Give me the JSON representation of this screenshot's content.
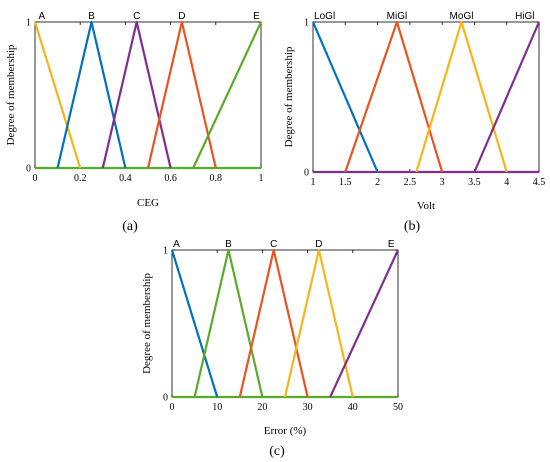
{
  "chart_data": [
    {
      "type": "line",
      "panel": "(a)",
      "xlabel": "CEG",
      "ylabel": "Degree of membership",
      "xlim": [
        0,
        1
      ],
      "ylim": [
        0,
        1
      ],
      "xticks": [
        0,
        0.2,
        0.4,
        0.6,
        0.8,
        1
      ],
      "xtick_labels": [
        "0",
        "0.2",
        "0.4",
        "0.6",
        "0.8",
        "1"
      ],
      "yticks": [
        0,
        1
      ],
      "ytick_labels": [
        "0",
        "1"
      ],
      "grid": false,
      "series": [
        {
          "name": "A",
          "color": "#f7b519",
          "x": [
            0,
            0.2
          ],
          "y": [
            1,
            0
          ],
          "label_x": 0.03
        },
        {
          "name": "B",
          "color": "#0072bd",
          "x": [
            0.1,
            0.25,
            0.4
          ],
          "y": [
            0,
            1,
            0
          ],
          "label_x": 0.25
        },
        {
          "name": "C",
          "color": "#7e2f8e",
          "x": [
            0.3,
            0.45,
            0.6
          ],
          "y": [
            0,
            1,
            0
          ],
          "label_x": 0.45
        },
        {
          "name": "D",
          "color": "#e9541f",
          "x": [
            0.5,
            0.65,
            0.8
          ],
          "y": [
            0,
            1,
            0
          ],
          "label_x": 0.65
        },
        {
          "name": "E",
          "color": "#5aab2b",
          "x": [
            0.7,
            1
          ],
          "y": [
            0,
            1
          ],
          "label_x": 0.98
        }
      ],
      "baseline": {
        "color": "#5aab2b",
        "x": [
          0,
          1
        ],
        "y": [
          0,
          0
        ]
      }
    },
    {
      "type": "line",
      "panel": "(b)",
      "xlabel": "Volt",
      "ylabel": "Degree of membership",
      "xlim": [
        1,
        4.5
      ],
      "ylim": [
        0,
        1
      ],
      "xticks": [
        1,
        1.5,
        2,
        2.5,
        3,
        3.5,
        4,
        4.5
      ],
      "xtick_labels": [
        "1",
        "1.5",
        "2",
        "2.5",
        "3",
        "3.5",
        "4",
        "4.5"
      ],
      "yticks": [
        0,
        1
      ],
      "ytick_labels": [
        "0",
        "1"
      ],
      "grid": false,
      "series": [
        {
          "name": "LoGl",
          "color": "#0072bd",
          "x": [
            1,
            2
          ],
          "y": [
            1,
            0
          ],
          "label_x": 1.18
        },
        {
          "name": "MiGl",
          "color": "#e9541f",
          "x": [
            1.5,
            2.3,
            3
          ],
          "y": [
            0,
            1,
            0
          ],
          "label_x": 2.3
        },
        {
          "name": "MoGl",
          "color": "#f7b519",
          "x": [
            2.6,
            3.3,
            4
          ],
          "y": [
            0,
            1,
            0
          ],
          "label_x": 3.3
        },
        {
          "name": "HiGl",
          "color": "#7e2f8e",
          "x": [
            3.5,
            4.5
          ],
          "y": [
            0,
            1
          ],
          "label_x": 4.28
        }
      ],
      "baseline": {
        "color": "#7e2f8e",
        "x": [
          1,
          4.5
        ],
        "y": [
          0,
          0
        ]
      }
    },
    {
      "type": "line",
      "panel": "(c)",
      "xlabel": "Error (%)",
      "ylabel": "Degree of membership",
      "xlim": [
        0,
        50
      ],
      "ylim": [
        0,
        1
      ],
      "xticks": [
        0,
        10,
        20,
        30,
        40,
        50
      ],
      "xtick_labels": [
        "0",
        "10",
        "20",
        "30",
        "40",
        "50"
      ],
      "yticks": [
        0,
        1
      ],
      "ytick_labels": [
        "0",
        "1"
      ],
      "grid": false,
      "series": [
        {
          "name": "A",
          "color": "#0072bd",
          "x": [
            0,
            10
          ],
          "y": [
            1,
            0
          ],
          "label_x": 1
        },
        {
          "name": "B",
          "color": "#5aab2b",
          "x": [
            5,
            12.5,
            20
          ],
          "y": [
            0,
            1,
            0
          ],
          "label_x": 12.5
        },
        {
          "name": "C",
          "color": "#e9541f",
          "x": [
            15,
            22.5,
            30
          ],
          "y": [
            0,
            1,
            0
          ],
          "label_x": 22.5
        },
        {
          "name": "D",
          "color": "#f7b519",
          "x": [
            25,
            32.5,
            40
          ],
          "y": [
            0,
            1,
            0
          ],
          "label_x": 32.5
        },
        {
          "name": "E",
          "color": "#7e2f8e",
          "x": [
            35,
            50
          ],
          "y": [
            0,
            1
          ],
          "label_x": 48.5
        }
      ],
      "baseline": {
        "color": "#5aab2b",
        "x": [
          0,
          50
        ],
        "y": [
          0,
          0
        ]
      }
    }
  ]
}
